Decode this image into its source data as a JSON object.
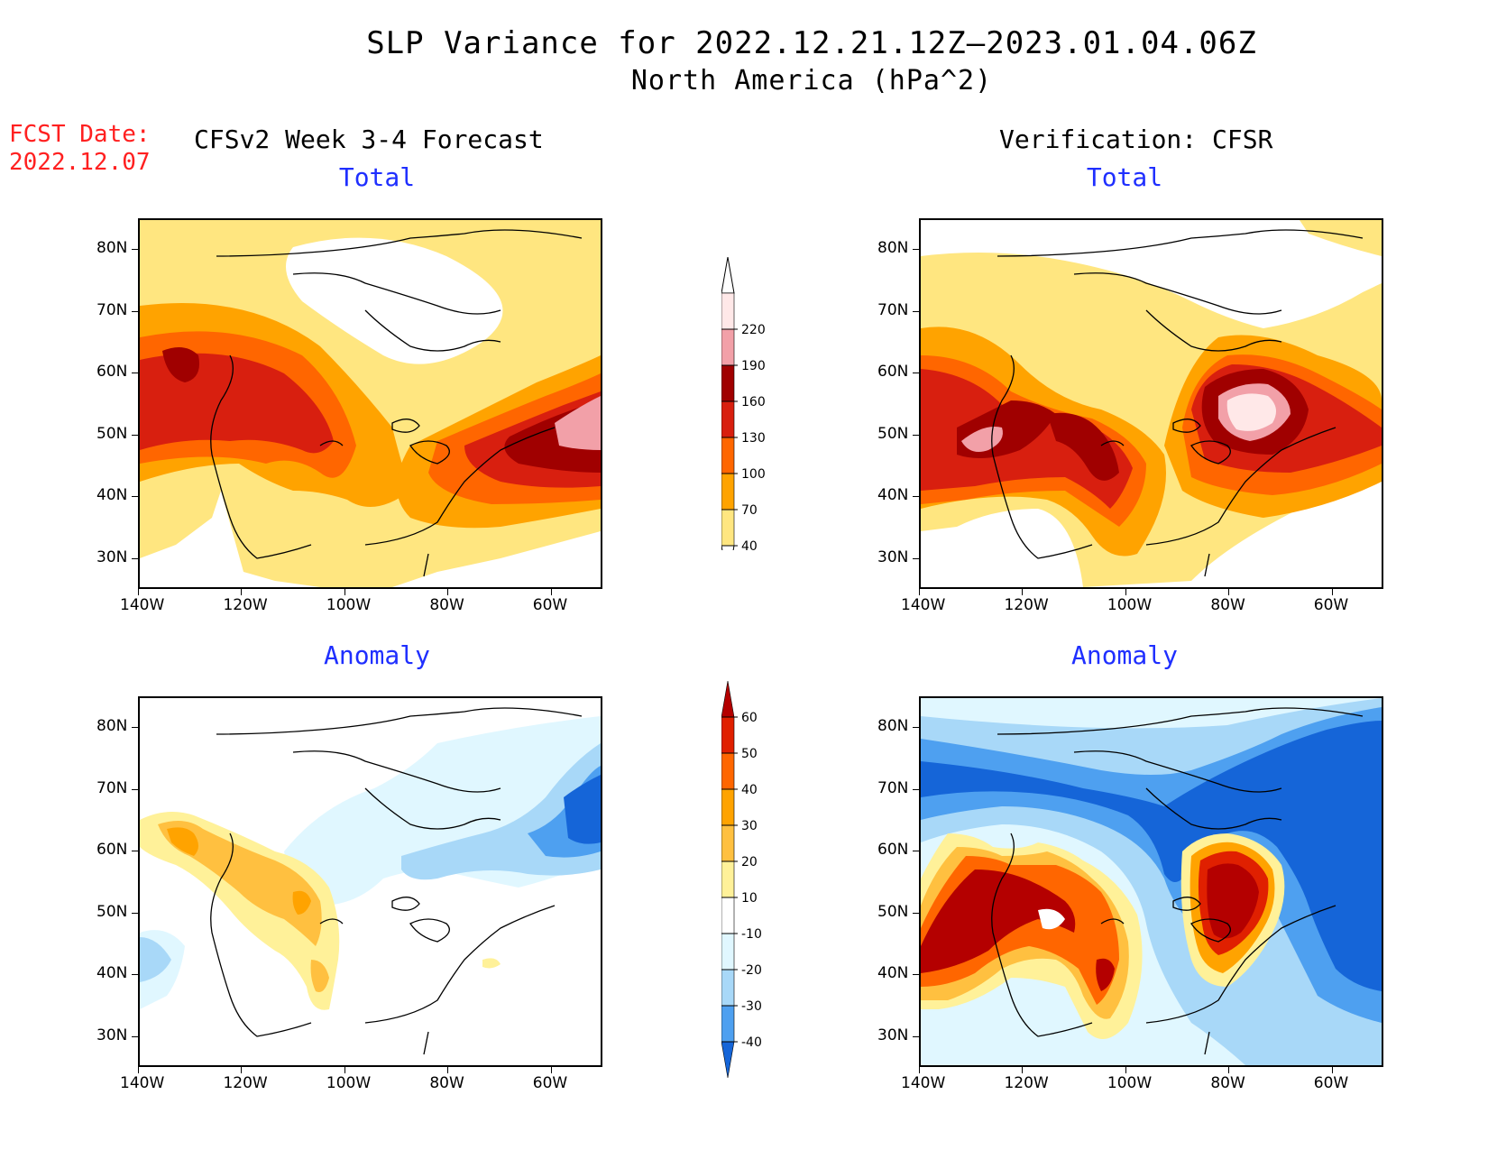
{
  "header": {
    "title_line1": "SLP Variance for 2022.12.21.12Z–2023.01.04.06Z",
    "title_line2": "North America (hPa^2)",
    "fcst_label": "FCST Date:",
    "fcst_date": "2022.12.07",
    "left_heading": "CFSv2 Week 3-4 Forecast",
    "right_heading": "Verification: CFSR"
  },
  "panels": {
    "top_left_title": "Total",
    "top_right_title": "Total",
    "bottom_left_title": "Anomaly",
    "bottom_right_title": "Anomaly"
  },
  "axes": {
    "lat_ticks": [
      "80N",
      "70N",
      "60N",
      "50N",
      "40N",
      "30N"
    ],
    "lon_ticks": [
      "140W",
      "120W",
      "100W",
      "80W",
      "60W"
    ],
    "lat_values": [
      80,
      70,
      60,
      50,
      40,
      30
    ],
    "lon_values": [
      -140,
      -120,
      -100,
      -80,
      -60
    ],
    "lat_range": [
      25,
      85
    ],
    "lon_range": [
      -140,
      -50
    ]
  },
  "colorbar_total": {
    "levels": [
      "220",
      "190",
      "160",
      "130",
      "100",
      "70",
      "40"
    ],
    "colors": [
      "#ffe8e8",
      "#f2a0a8",
      "#a00000",
      "#d81f0f",
      "#ff6600",
      "#ffa300",
      "#ffe680"
    ]
  },
  "colorbar_anomaly": {
    "levels": [
      "60",
      "50",
      "40",
      "30",
      "20",
      "10",
      "-10",
      "-20",
      "-30",
      "-40"
    ],
    "colors": [
      "#b40000",
      "#e02000",
      "#ff6600",
      "#ffa300",
      "#ffc040",
      "#fff199",
      "#ffffff",
      "#e0f7ff",
      "#a8d8f8",
      "#4ea0f0",
      "#1565d8"
    ]
  }
}
